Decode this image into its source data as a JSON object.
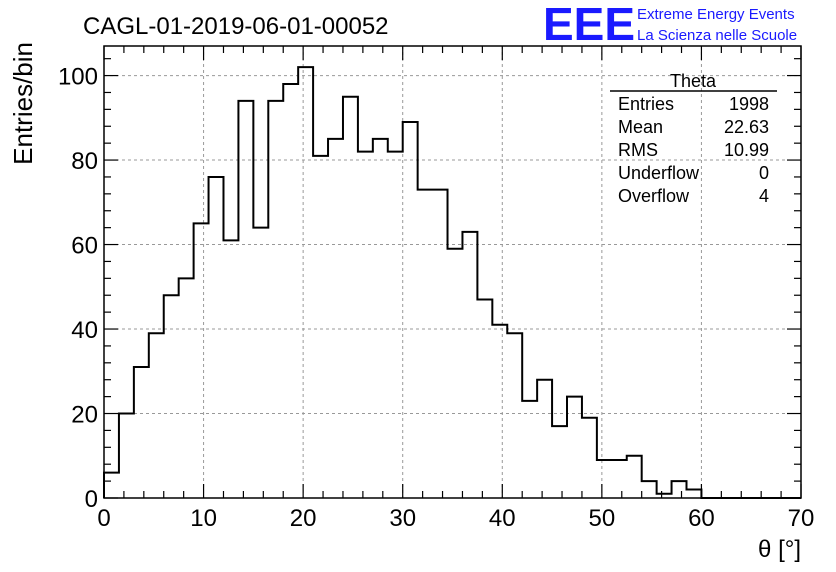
{
  "chart_data": {
    "type": "bar",
    "title": "CAGL-01-2019-06-01-00052",
    "xlabel": "θ [°]",
    "ylabel": "Entries/bin",
    "xlim": [
      0,
      70
    ],
    "ylim": [
      0,
      107
    ],
    "bin_width": 1.5,
    "x_start": 0,
    "xticks": [
      0,
      10,
      20,
      30,
      40,
      50,
      60,
      70
    ],
    "yticks": [
      0,
      20,
      40,
      60,
      80,
      100
    ],
    "grid": true,
    "values": [
      6,
      20,
      31,
      39,
      48,
      52,
      65,
      76,
      61,
      94,
      64,
      94,
      98,
      102,
      81,
      85,
      95,
      82,
      85,
      82,
      89,
      73,
      73,
      59,
      63,
      47,
      41,
      39,
      23,
      28,
      17,
      24,
      19,
      9,
      9,
      10,
      4,
      1,
      4,
      2,
      0,
      0,
      0,
      0,
      0,
      0,
      0
    ],
    "line_color": "#000000"
  },
  "stats": {
    "title": "Theta",
    "rows": [
      {
        "label": "Entries",
        "value": "1998"
      },
      {
        "label": "Mean",
        "value": "22.63"
      },
      {
        "label": "RMS",
        "value": "10.99"
      },
      {
        "label": "Underflow",
        "value": "0"
      },
      {
        "label": "Overflow",
        "value": "4"
      }
    ]
  },
  "logo": {
    "mark": "EEE",
    "line1": "Extreme Energy Events",
    "line2": "La Scienza nelle Scuole",
    "color": "#1a1aff"
  }
}
